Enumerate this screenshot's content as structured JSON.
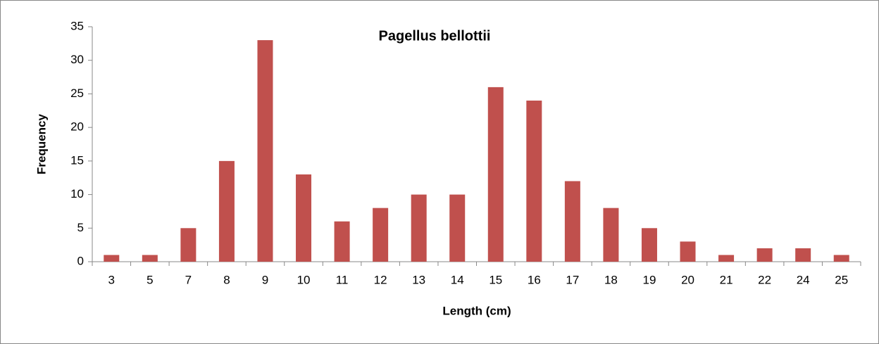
{
  "chart_data": {
    "type": "bar",
    "title": "Pagellus bellottii",
    "x_label": "Length (cm)",
    "y_label": "Frequency",
    "categories": [
      "3",
      "5",
      "7",
      "8",
      "9",
      "10",
      "11",
      "12",
      "13",
      "14",
      "15",
      "16",
      "17",
      "18",
      "19",
      "20",
      "21",
      "22",
      "24",
      "25"
    ],
    "values": [
      1,
      1,
      5,
      15,
      33,
      13,
      6,
      8,
      10,
      10,
      26,
      24,
      12,
      8,
      5,
      3,
      1,
      2,
      2,
      1
    ],
    "color": "#c0504d",
    "ylim": [
      0,
      35
    ],
    "yticks": [
      0,
      5,
      10,
      15,
      20,
      25,
      30,
      35
    ],
    "grid": false
  }
}
